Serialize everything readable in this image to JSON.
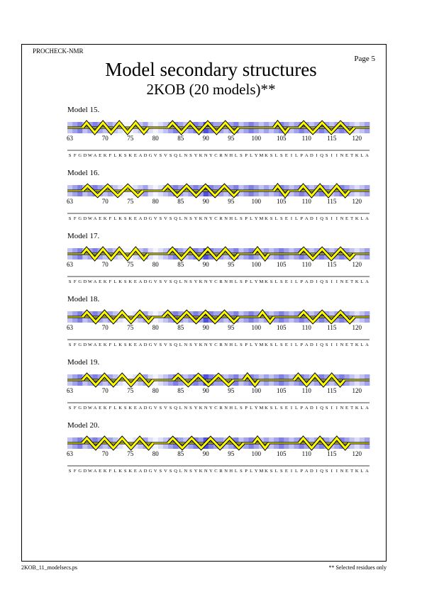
{
  "header": {
    "program": "PROCHECK-NMR",
    "page_label": "Page  5",
    "title": "Model secondary structures",
    "subtitle": "2KOB (20 models)**"
  },
  "footer": {
    "filename": "2KOB_11_modelsecs.ps",
    "note": "** Selected residues only"
  },
  "residue_start": 63,
  "tick_labels": [
    "63",
    "70",
    "75",
    "80",
    "85",
    "90",
    "95",
    "100",
    "105",
    "110",
    "115",
    "120"
  ],
  "sequence": [
    "S",
    "F",
    "G",
    "D",
    "W",
    "A",
    "E",
    "K",
    "F",
    "L",
    "K",
    "S",
    "K",
    "E",
    "A",
    "D",
    "G",
    "V",
    "S",
    "V",
    "S",
    "Q",
    "L",
    "N",
    "S",
    "Y",
    "K",
    "N",
    "Y",
    "C",
    "R",
    "N",
    "H",
    "L",
    "S",
    "P",
    "L",
    "Y",
    "M",
    "K",
    "S",
    "L",
    "S",
    "E",
    "I",
    "L",
    "P",
    "A",
    "D",
    "I",
    "Q",
    "S",
    "I",
    "I",
    "N",
    "E",
    "T",
    "K",
    "L",
    "A"
  ],
  "colors": {
    "helix_fill": "#ffff00",
    "helix_outline": "#000000",
    "shade_dark": "#3333dd",
    "shade_light": "#f2f2ff"
  },
  "shading": [
    2,
    3,
    4,
    2,
    3,
    4,
    3,
    2,
    3,
    2,
    1,
    0,
    0,
    1,
    2,
    3,
    1,
    0,
    1,
    2,
    3,
    4,
    3,
    2,
    3,
    4,
    3,
    5,
    4,
    3,
    3,
    2,
    3,
    4,
    2,
    3,
    4,
    3,
    2,
    3,
    2,
    3,
    4,
    3,
    2,
    3,
    4,
    3,
    2,
    3,
    4,
    3,
    2,
    3,
    4,
    3,
    2,
    1,
    2,
    3
  ],
  "models": [
    {
      "label": "Model 15.",
      "elements": [
        {
          "type": "helix",
          "start": 66,
          "end": 78
        },
        {
          "type": "coil",
          "start": 79,
          "end": 82
        },
        {
          "type": "helix",
          "start": 83,
          "end": 96
        },
        {
          "type": "coil",
          "start": 97,
          "end": 103
        },
        {
          "type": "helix",
          "start": 104,
          "end": 106
        },
        {
          "type": "coil",
          "start": 107,
          "end": 108
        },
        {
          "type": "helix",
          "start": 109,
          "end": 119
        }
      ]
    },
    {
      "label": "Model 16.",
      "elements": [
        {
          "type": "helix",
          "start": 66,
          "end": 77
        },
        {
          "type": "coil",
          "start": 78,
          "end": 81
        },
        {
          "type": "helix",
          "start": 82,
          "end": 96
        },
        {
          "type": "coil",
          "start": 97,
          "end": 103
        },
        {
          "type": "helix",
          "start": 104,
          "end": 106
        },
        {
          "type": "coil",
          "start": 107,
          "end": 108
        },
        {
          "type": "helix",
          "start": 109,
          "end": 118
        }
      ]
    },
    {
      "label": "Model 17.",
      "elements": [
        {
          "type": "helix",
          "start": 66,
          "end": 78
        },
        {
          "type": "coil",
          "start": 79,
          "end": 82
        },
        {
          "type": "helix",
          "start": 83,
          "end": 96
        },
        {
          "type": "coil",
          "start": 97,
          "end": 99
        },
        {
          "type": "helix",
          "start": 100,
          "end": 102
        },
        {
          "type": "coil",
          "start": 103,
          "end": 108
        },
        {
          "type": "helix",
          "start": 109,
          "end": 119
        }
      ]
    },
    {
      "label": "Model 18.",
      "elements": [
        {
          "type": "helix",
          "start": 66,
          "end": 79
        },
        {
          "type": "coil",
          "start": 80,
          "end": 81
        },
        {
          "type": "helix",
          "start": 82,
          "end": 96
        },
        {
          "type": "coil",
          "start": 97,
          "end": 100
        },
        {
          "type": "helix",
          "start": 101,
          "end": 103
        },
        {
          "type": "coil",
          "start": 104,
          "end": 108
        },
        {
          "type": "helix",
          "start": 109,
          "end": 119
        }
      ]
    },
    {
      "label": "Model 19.",
      "elements": [
        {
          "type": "helix",
          "start": 66,
          "end": 79
        },
        {
          "type": "coil",
          "start": 80,
          "end": 83
        },
        {
          "type": "helix",
          "start": 84,
          "end": 95
        },
        {
          "type": "coil",
          "start": 96,
          "end": 97
        },
        {
          "type": "helix",
          "start": 98,
          "end": 100
        },
        {
          "type": "coil",
          "start": 101,
          "end": 107
        },
        {
          "type": "helix",
          "start": 108,
          "end": 117
        }
      ]
    },
    {
      "label": "Model 20.",
      "elements": [
        {
          "type": "helix",
          "start": 66,
          "end": 79
        },
        {
          "type": "coil",
          "start": 80,
          "end": 82
        },
        {
          "type": "helix",
          "start": 83,
          "end": 97
        },
        {
          "type": "coil",
          "start": 98,
          "end": 99
        },
        {
          "type": "helix",
          "start": 100,
          "end": 102
        },
        {
          "type": "coil",
          "start": 103,
          "end": 108
        },
        {
          "type": "helix",
          "start": 109,
          "end": 118
        }
      ]
    }
  ]
}
